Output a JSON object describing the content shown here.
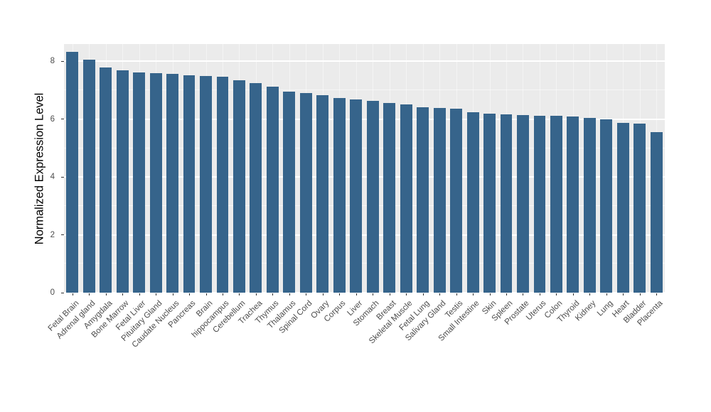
{
  "chart_data": {
    "type": "bar",
    "title": "",
    "xlabel": "",
    "ylabel": "Normalized Expression Level",
    "ylim": [
      0,
      8.6
    ],
    "yticks": [
      0,
      2,
      4,
      6,
      8
    ],
    "ytick_labels": [
      "0",
      "2",
      "4",
      "6",
      "8"
    ],
    "yticks_minor": [
      1,
      3,
      5,
      7
    ],
    "grid": true,
    "legend": "none",
    "background": "ggplot-gray-panel",
    "categories": [
      "Fetal Brain",
      "Adrenal gland",
      "Amygdala",
      "Bone Marrow",
      "Fetal Liver",
      "Pituitary Gland",
      "Caudate Nucleus",
      "Pancreas",
      "Brain",
      "hippocampus",
      "Cerebellum",
      "Trachea",
      "Thymus",
      "Thalamus",
      "Spinal Cord",
      "Ovary",
      "Corpus",
      "Liver",
      "Stomach",
      "Breast",
      "Skeletal Muscle",
      "Fetal Lung",
      "Salivary Gland",
      "Testis",
      "Small Intestine",
      "Skin",
      "Spleen",
      "Prostate",
      "Uterus",
      "Colon",
      "Thyroid",
      "Kidney",
      "Lung",
      "Heart",
      "Bladder",
      "Placenta"
    ],
    "values": [
      8.32,
      8.07,
      7.78,
      7.68,
      7.61,
      7.59,
      7.56,
      7.53,
      7.5,
      7.46,
      7.34,
      7.24,
      7.12,
      6.95,
      6.9,
      6.83,
      6.73,
      6.68,
      6.63,
      6.56,
      6.5,
      6.41,
      6.4,
      6.36,
      6.23,
      6.2,
      6.16,
      6.14,
      6.13,
      6.11,
      6.09,
      6.04,
      5.99,
      5.88,
      5.84,
      5.55
    ]
  },
  "colors": {
    "bar": "#36648B",
    "panel_bg": "#EBEBEB",
    "gridline": "#FFFFFF",
    "axis_text": "#4D4D4D",
    "axis_title": "#000000"
  }
}
